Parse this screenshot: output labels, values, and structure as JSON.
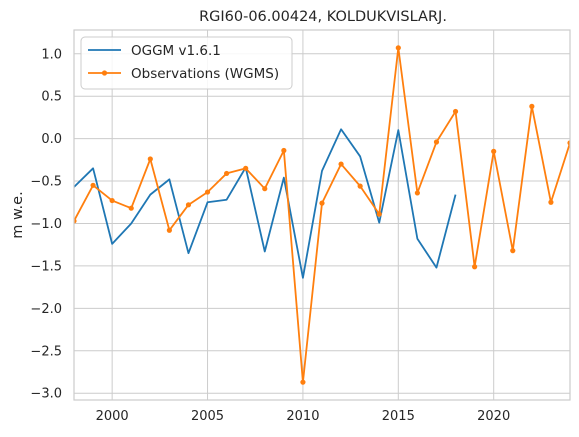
{
  "chart_data": {
    "type": "line",
    "title": "RGI60-06.00424, KOLDUKVISLARJ.",
    "xlabel": "",
    "ylabel": "m w.e.",
    "xlim": [
      1998,
      2024
    ],
    "ylim": [
      -3.08,
      1.28
    ],
    "xticks": [
      2000,
      2005,
      2010,
      2015,
      2020
    ],
    "yticks": [
      1.0,
      0.5,
      0.0,
      -0.5,
      -1.0,
      -1.5,
      -2.0,
      -2.5,
      -3.0
    ],
    "ytick_labels": [
      "1.0",
      "0.5",
      "0.0",
      "−0.5",
      "−1.0",
      "−1.5",
      "−2.0",
      "−2.5",
      "−3.0"
    ],
    "grid": true,
    "legend_position": "top-left",
    "series": [
      {
        "name": "OGGM v1.6.1",
        "color": "#1f77b4",
        "marker": "none",
        "x": [
          1998,
          1999,
          2000,
          2001,
          2002,
          2003,
          2004,
          2005,
          2006,
          2007,
          2008,
          2009,
          2010,
          2011,
          2012,
          2013,
          2014,
          2015,
          2016,
          2017,
          2018
        ],
        "y": [
          -0.57,
          -0.35,
          -1.24,
          -1.0,
          -0.66,
          -0.48,
          -1.35,
          -0.75,
          -0.72,
          -0.34,
          -1.33,
          -0.46,
          -1.64,
          -0.38,
          0.11,
          -0.21,
          -0.99,
          0.1,
          -1.18,
          -1.52,
          -0.66
        ]
      },
      {
        "name": "Observations (WGMS)",
        "color": "#ff7f0e",
        "marker": "circle",
        "x": [
          1998,
          1999,
          2000,
          2001,
          2002,
          2003,
          2004,
          2005,
          2006,
          2007,
          2008,
          2009,
          2010,
          2011,
          2012,
          2013,
          2014,
          2015,
          2016,
          2017,
          2018,
          2019,
          2020,
          2021,
          2022,
          2023,
          2024
        ],
        "y": [
          -0.97,
          -0.55,
          -0.73,
          -0.82,
          -0.24,
          -1.08,
          -0.78,
          -0.63,
          -0.41,
          -0.35,
          -0.59,
          -0.14,
          -2.87,
          -0.76,
          -0.3,
          -0.56,
          -0.89,
          1.07,
          -0.64,
          -0.04,
          0.32,
          -1.51,
          -0.15,
          -1.32,
          0.38,
          -0.75,
          -0.05
        ]
      }
    ]
  }
}
